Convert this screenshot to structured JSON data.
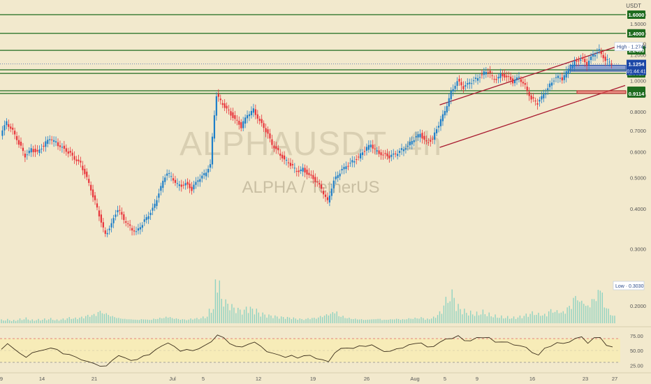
{
  "chart_data": {
    "type": "candlestick",
    "watermark": {
      "symbol": "ALPHAUSDT, 4h",
      "subtitle": "ALPHA / TetherUS"
    },
    "currency_label": "USDT",
    "colors": {
      "background": "#f2e9cd",
      "up": "#1e7fc9",
      "down": "#e8333a",
      "level_line": "#1e6b1e",
      "channel": "#a8182e",
      "volume": "#7fcfc0",
      "rsi_line": "#3a2d1a",
      "rsi_band": "#f7ecb8",
      "rsi_bound": "#e06060",
      "current_price_tag": "#1b47a6",
      "support_zone": "#3a62d0",
      "demand_zone": "#e85a5a"
    },
    "price_scale": {
      "type": "log",
      "ticks": [
        "1.6000",
        "1.5000",
        "1.4000",
        "1.3000",
        "1.2000",
        "1.1000",
        "1.0000",
        "0.9000",
        "0.8000",
        "0.7000",
        "0.6000",
        "0.5000",
        "0.4000",
        "0.3000",
        "0.2000"
      ]
    },
    "x_axis": {
      "ticks": [
        "9",
        "14",
        "21",
        "Jul",
        "5",
        "12",
        "19",
        "26",
        "Aug",
        "5",
        "9",
        "16",
        "23",
        "27"
      ]
    },
    "horizontal_levels": [
      "1.6000",
      "1.4000",
      "1.2400",
      "1.0791",
      "1.0518",
      "0.9291",
      "0.9114"
    ],
    "high_marker": {
      "label": "High",
      "value": "1.2743"
    },
    "low_marker": {
      "label": "Low",
      "value": "0.3030"
    },
    "current_price": {
      "value": "1.1254",
      "countdown": "01:44:41"
    },
    "rsi": {
      "ticks": [
        "75.00",
        "50.00",
        "25.00"
      ],
      "upper": 70,
      "lower": 30
    },
    "series_close": [
      0.68,
      0.74,
      0.7,
      0.64,
      0.58,
      0.61,
      0.6,
      0.63,
      0.66,
      0.64,
      0.62,
      0.6,
      0.57,
      0.55,
      0.5,
      0.44,
      0.38,
      0.33,
      0.36,
      0.4,
      0.37,
      0.35,
      0.34,
      0.36,
      0.38,
      0.41,
      0.47,
      0.52,
      0.49,
      0.47,
      0.48,
      0.46,
      0.49,
      0.51,
      0.55,
      0.9,
      0.84,
      0.8,
      0.76,
      0.72,
      0.78,
      0.81,
      0.75,
      0.7,
      0.63,
      0.6,
      0.57,
      0.55,
      0.52,
      0.53,
      0.51,
      0.49,
      0.46,
      0.42,
      0.49,
      0.52,
      0.54,
      0.56,
      0.58,
      0.61,
      0.63,
      0.6,
      0.59,
      0.58,
      0.59,
      0.61,
      0.63,
      0.66,
      0.68,
      0.64,
      0.66,
      0.73,
      0.8,
      0.92,
      1.0,
      0.95,
      0.98,
      1.01,
      1.05,
      1.07,
      1.0,
      1.04,
      1.03,
      0.99,
      1.02,
      0.96,
      0.88,
      0.85,
      0.9,
      0.97,
      1.03,
      1.01,
      1.08,
      1.14,
      1.17,
      1.12,
      1.2,
      1.24,
      1.16,
      1.13
    ],
    "series_volume": [
      0.08,
      0.09,
      0.07,
      0.1,
      0.12,
      0.08,
      0.09,
      0.1,
      0.11,
      0.08,
      0.1,
      0.13,
      0.12,
      0.14,
      0.18,
      0.2,
      0.27,
      0.22,
      0.16,
      0.12,
      0.1,
      0.09,
      0.08,
      0.09,
      0.08,
      0.1,
      0.12,
      0.14,
      0.11,
      0.09,
      0.08,
      0.1,
      0.11,
      0.14,
      0.3,
      0.9,
      0.5,
      0.4,
      0.32,
      0.28,
      0.34,
      0.3,
      0.22,
      0.18,
      0.16,
      0.14,
      0.13,
      0.12,
      0.1,
      0.09,
      0.11,
      0.12,
      0.16,
      0.2,
      0.25,
      0.16,
      0.12,
      0.1,
      0.09,
      0.08,
      0.09,
      0.1,
      0.08,
      0.09,
      0.1,
      0.09,
      0.11,
      0.12,
      0.13,
      0.1,
      0.14,
      0.25,
      0.55,
      0.7,
      0.4,
      0.3,
      0.26,
      0.24,
      0.28,
      0.22,
      0.18,
      0.16,
      0.15,
      0.14,
      0.16,
      0.2,
      0.25,
      0.22,
      0.2,
      0.3,
      0.28,
      0.26,
      0.38,
      0.6,
      0.5,
      0.4,
      0.55,
      0.75,
      0.35,
      0.18
    ],
    "series_rsi": [
      52,
      60,
      55,
      44,
      38,
      48,
      47,
      52,
      55,
      50,
      46,
      43,
      38,
      36,
      30,
      28,
      25,
      22,
      35,
      42,
      36,
      35,
      34,
      40,
      45,
      50,
      58,
      64,
      55,
      50,
      52,
      48,
      55,
      58,
      64,
      78,
      70,
      62,
      58,
      54,
      62,
      64,
      56,
      50,
      44,
      42,
      40,
      40,
      38,
      42,
      40,
      38,
      34,
      30,
      48,
      52,
      54,
      55,
      56,
      58,
      60,
      52,
      50,
      48,
      52,
      56,
      58,
      62,
      64,
      54,
      58,
      64,
      68,
      72,
      74,
      66,
      68,
      70,
      72,
      73,
      62,
      66,
      64,
      58,
      60,
      54,
      46,
      44,
      52,
      58,
      64,
      60,
      66,
      70,
      72,
      64,
      70,
      72,
      60,
      54
    ]
  }
}
